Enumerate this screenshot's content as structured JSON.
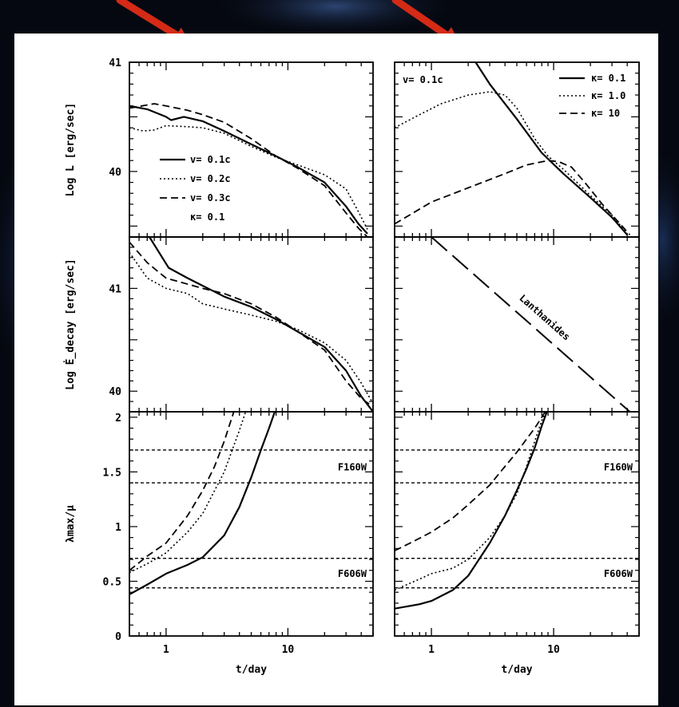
{
  "annotation_arrows": {
    "color": "#d42a16",
    "count": 2
  },
  "chart_data": [
    {
      "id": "lum_kappa",
      "type": "line",
      "xscale": "log",
      "xlim": [
        0.5,
        50
      ],
      "ylim": [
        39.4,
        41
      ],
      "yticks": [
        40,
        41
      ],
      "ylabel": "Log L [erg/sec]",
      "legend": {
        "placement": "bottom-left",
        "extra": "κ= 0.1"
      },
      "series": [
        {
          "name": "v= 0.1c",
          "style": "solid",
          "points": [
            [
              0.5,
              40.6
            ],
            [
              0.7,
              40.57
            ],
            [
              1.0,
              40.5
            ],
            [
              1.1,
              40.47
            ],
            [
              1.4,
              40.5
            ],
            [
              2,
              40.46
            ],
            [
              3,
              40.37
            ],
            [
              5,
              40.25
            ],
            [
              8,
              40.14
            ],
            [
              12,
              40.04
            ],
            [
              20,
              39.9
            ],
            [
              30,
              39.68
            ],
            [
              38,
              39.52
            ],
            [
              45,
              39.43
            ]
          ]
        },
        {
          "name": "v= 0.2c",
          "style": "dotted",
          "points": [
            [
              0.5,
              40.4
            ],
            [
              0.65,
              40.37
            ],
            [
              0.8,
              40.38
            ],
            [
              1.0,
              40.42
            ],
            [
              1.5,
              40.41
            ],
            [
              2,
              40.4
            ],
            [
              3,
              40.35
            ],
            [
              5,
              40.23
            ],
            [
              8,
              40.13
            ],
            [
              12,
              40.06
            ],
            [
              20,
              39.97
            ],
            [
              30,
              39.84
            ],
            [
              38,
              39.63
            ],
            [
              45,
              39.47
            ]
          ]
        },
        {
          "name": "v= 0.3c",
          "style": "dashed",
          "points": [
            [
              0.5,
              40.58
            ],
            [
              0.8,
              40.62
            ],
            [
              1.0,
              40.6
            ],
            [
              1.5,
              40.56
            ],
            [
              2,
              40.52
            ],
            [
              3,
              40.45
            ],
            [
              5,
              40.3
            ],
            [
              8,
              40.14
            ],
            [
              12,
              40.03
            ],
            [
              20,
              39.87
            ],
            [
              30,
              39.62
            ],
            [
              38,
              39.48
            ],
            [
              45,
              39.4
            ]
          ]
        }
      ]
    },
    {
      "id": "lum_vel",
      "type": "line",
      "xscale": "log",
      "xlim": [
        0.5,
        50
      ],
      "ylim": [
        39.4,
        41
      ],
      "legend": {
        "placement": "top-right",
        "title": "v= 0.1c"
      },
      "series": [
        {
          "name": "κ= 0.1",
          "style": "solid",
          "points": [
            [
              2.3,
              41.0
            ],
            [
              3,
              40.8
            ],
            [
              5,
              40.48
            ],
            [
              8,
              40.17
            ],
            [
              12,
              39.98
            ],
            [
              20,
              39.76
            ],
            [
              30,
              39.58
            ],
            [
              40,
              39.42
            ]
          ]
        },
        {
          "name": "κ= 1.0",
          "style": "dotted",
          "points": [
            [
              0.5,
              40.4
            ],
            [
              0.8,
              40.52
            ],
            [
              1.2,
              40.62
            ],
            [
              2,
              40.7
            ],
            [
              3,
              40.73
            ],
            [
              4,
              40.7
            ],
            [
              5,
              40.58
            ],
            [
              7,
              40.3
            ],
            [
              9,
              40.14
            ],
            [
              12,
              40.02
            ],
            [
              20,
              39.78
            ],
            [
              30,
              39.6
            ],
            [
              40,
              39.43
            ]
          ]
        },
        {
          "name": "κ= 10",
          "style": "dashed",
          "points": [
            [
              0.5,
              39.52
            ],
            [
              1,
              39.72
            ],
            [
              2,
              39.85
            ],
            [
              4,
              39.98
            ],
            [
              6,
              40.06
            ],
            [
              9,
              40.1
            ],
            [
              11,
              40.09
            ],
            [
              14,
              40.04
            ],
            [
              18,
              39.9
            ],
            [
              25,
              39.7
            ],
            [
              35,
              39.52
            ],
            [
              42,
              39.42
            ]
          ]
        }
      ]
    },
    {
      "id": "edot_kappa",
      "type": "line",
      "xscale": "log",
      "xlim": [
        0.5,
        50
      ],
      "ylim": [
        39.8,
        41.5
      ],
      "yticks": [
        40,
        41
      ],
      "ylabel": "Log Ė_decay [erg/sec]",
      "series": [
        {
          "name": "v= 0.1c",
          "style": "solid",
          "points": [
            [
              0.73,
              41.5
            ],
            [
              1.05,
              41.2
            ],
            [
              1.5,
              41.1
            ],
            [
              3,
              40.92
            ],
            [
              5,
              40.82
            ],
            [
              8,
              40.7
            ],
            [
              12,
              40.58
            ],
            [
              20,
              40.43
            ],
            [
              30,
              40.2
            ],
            [
              40,
              39.95
            ],
            [
              50,
              39.8
            ]
          ]
        },
        {
          "name": "v= 0.2c",
          "style": "dotted",
          "points": [
            [
              0.5,
              41.35
            ],
            [
              0.7,
              41.1
            ],
            [
              1.0,
              41.0
            ],
            [
              1.5,
              40.95
            ],
            [
              2,
              40.85
            ],
            [
              3,
              40.8
            ],
            [
              5,
              40.74
            ],
            [
              8,
              40.68
            ],
            [
              12,
              40.6
            ],
            [
              20,
              40.47
            ],
            [
              30,
              40.3
            ],
            [
              40,
              40.08
            ],
            [
              50,
              39.88
            ]
          ]
        },
        {
          "name": "v= 0.3c",
          "style": "dashed",
          "points": [
            [
              0.5,
              41.45
            ],
            [
              0.7,
              41.25
            ],
            [
              1.0,
              41.1
            ],
            [
              2,
              41.0
            ],
            [
              3,
              40.95
            ],
            [
              5,
              40.85
            ],
            [
              8,
              40.72
            ],
            [
              12,
              40.58
            ],
            [
              20,
              40.4
            ],
            [
              30,
              40.1
            ],
            [
              40,
              39.93
            ],
            [
              50,
              39.85
            ]
          ]
        }
      ]
    },
    {
      "id": "edot_vel",
      "type": "line",
      "xscale": "log",
      "xlim": [
        0.5,
        50
      ],
      "ylim": [
        39.8,
        41.5
      ],
      "annotation": "Lanthanides",
      "series": [
        {
          "name": "",
          "style": "longdash",
          "points": [
            [
              1.0,
              41.5
            ],
            [
              42,
              39.8
            ]
          ]
        }
      ]
    },
    {
      "id": "lam_kappa",
      "type": "line",
      "xscale": "log",
      "xlim": [
        0.5,
        50
      ],
      "xticks": [
        1,
        10
      ],
      "xlabel": "t/day",
      "ylim": [
        0,
        2.05
      ],
      "yticks": [
        0,
        0.5,
        1,
        1.5,
        2
      ],
      "ylabel": "λmax/μ",
      "bands": [
        {
          "label": "F160W",
          "lo": 1.4,
          "hi": 1.7
        },
        {
          "label": "F606W",
          "lo": 0.44,
          "hi": 0.71
        }
      ],
      "series": [
        {
          "name": "v= 0.1c",
          "style": "solid",
          "points": [
            [
              0.5,
              0.38
            ],
            [
              0.7,
              0.47
            ],
            [
              1.0,
              0.57
            ],
            [
              1.5,
              0.65
            ],
            [
              2,
              0.72
            ],
            [
              3,
              0.92
            ],
            [
              4,
              1.18
            ],
            [
              5,
              1.45
            ],
            [
              6,
              1.7
            ],
            [
              7,
              1.9
            ],
            [
              7.8,
              2.05
            ]
          ]
        },
        {
          "name": "v= 0.2c",
          "style": "dotted",
          "points": [
            [
              0.5,
              0.58
            ],
            [
              0.7,
              0.66
            ],
            [
              1.0,
              0.76
            ],
            [
              1.5,
              0.95
            ],
            [
              2,
              1.12
            ],
            [
              3,
              1.5
            ],
            [
              4,
              1.88
            ],
            [
              4.5,
              2.05
            ]
          ]
        },
        {
          "name": "v= 0.3c",
          "style": "dashed",
          "points": [
            [
              0.5,
              0.6
            ],
            [
              0.7,
              0.73
            ],
            [
              1.0,
              0.85
            ],
            [
              1.5,
              1.1
            ],
            [
              2,
              1.33
            ],
            [
              2.5,
              1.55
            ],
            [
              3,
              1.78
            ],
            [
              3.6,
              2.05
            ]
          ]
        }
      ]
    },
    {
      "id": "lam_vel",
      "type": "line",
      "xscale": "log",
      "xlim": [
        0.5,
        50
      ],
      "xticks": [
        1,
        10
      ],
      "xlabel": "t/day",
      "ylim": [
        0,
        2.05
      ],
      "bands": [
        {
          "label": "F160W",
          "lo": 1.4,
          "hi": 1.7
        },
        {
          "label": "F606W",
          "lo": 0.44,
          "hi": 0.71
        }
      ],
      "series": [
        {
          "name": "κ= 0.1",
          "style": "solid",
          "points": [
            [
              0.5,
              0.25
            ],
            [
              0.8,
              0.29
            ],
            [
              1.0,
              0.32
            ],
            [
              1.5,
              0.42
            ],
            [
              2,
              0.55
            ],
            [
              3,
              0.85
            ],
            [
              4,
              1.1
            ],
            [
              5,
              1.33
            ],
            [
              6,
              1.53
            ],
            [
              7,
              1.72
            ],
            [
              8,
              1.92
            ],
            [
              8.8,
              2.05
            ]
          ]
        },
        {
          "name": "κ= 1.0",
          "style": "dotted",
          "points": [
            [
              0.5,
              0.42
            ],
            [
              0.8,
              0.52
            ],
            [
              1.0,
              0.57
            ],
            [
              1.5,
              0.62
            ],
            [
              2,
              0.7
            ],
            [
              3,
              0.9
            ],
            [
              4,
              1.1
            ],
            [
              5,
              1.3
            ],
            [
              6,
              1.55
            ],
            [
              7,
              1.78
            ],
            [
              8,
              1.97
            ],
            [
              8.6,
              2.05
            ]
          ]
        },
        {
          "name": "κ= 10",
          "style": "dashed",
          "points": [
            [
              0.5,
              0.78
            ],
            [
              0.7,
              0.86
            ],
            [
              1.0,
              0.95
            ],
            [
              1.5,
              1.08
            ],
            [
              2,
              1.2
            ],
            [
              3,
              1.38
            ],
            [
              4,
              1.55
            ],
            [
              5,
              1.68
            ],
            [
              6,
              1.8
            ],
            [
              7,
              1.9
            ],
            [
              8,
              2.0
            ],
            [
              8.5,
              2.05
            ]
          ]
        }
      ]
    }
  ]
}
